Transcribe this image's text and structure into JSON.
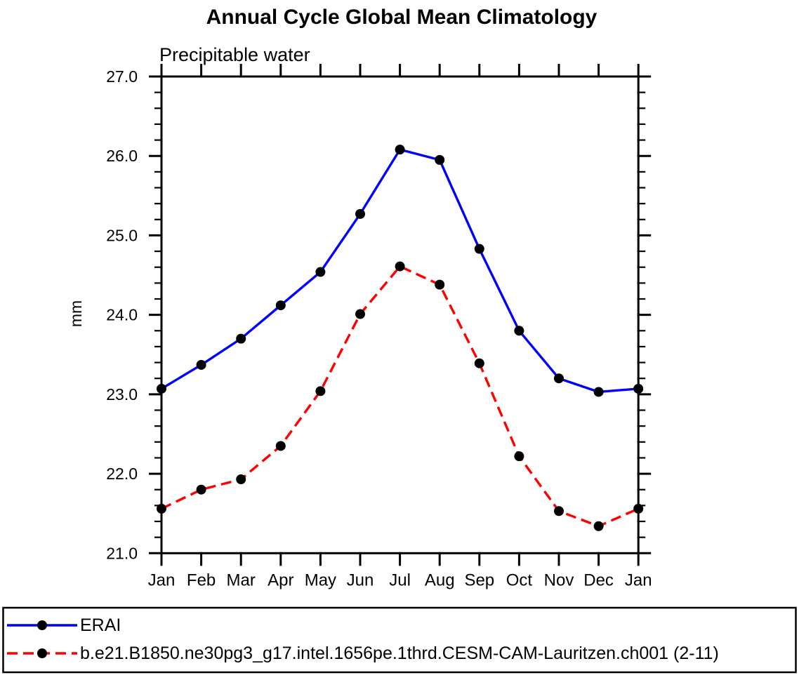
{
  "chart_data": {
    "type": "line",
    "title": "Annual Cycle Global Mean Climatology",
    "subtitle": "Precipitable water",
    "ylabel": "mm",
    "ylim": [
      21.0,
      27.0
    ],
    "ytick_major": 1.0,
    "ytick_minor": 0.2,
    "y_tick_labels": [
      "21.0",
      "22.0",
      "23.0",
      "24.0",
      "25.0",
      "26.0",
      "27.0"
    ],
    "x_categories": [
      "Jan",
      "Feb",
      "Mar",
      "Apr",
      "May",
      "Jun",
      "Jul",
      "Aug",
      "Sep",
      "Oct",
      "Nov",
      "Dec",
      "Jan"
    ],
    "grid": false,
    "legend_position": "bottom",
    "axis_color": "#000000",
    "background_color": "#ffffff",
    "marker": "filled-circle",
    "series": [
      {
        "name": "ERAI",
        "color": "#0000ff",
        "line_style": "solid",
        "marker_color": "#000000",
        "values": [
          23.07,
          23.37,
          23.7,
          24.12,
          24.54,
          25.27,
          26.08,
          25.95,
          24.83,
          23.8,
          23.2,
          23.03,
          23.07
        ]
      },
      {
        "name": "b.e21.B1850.ne30pg3_g17.intel.1656pe.1thrd.CESM-CAM-Lauritzen.ch001 (2-11)",
        "color": "#ff0000",
        "line_style": "dashed",
        "marker_color": "#000000",
        "values": [
          21.56,
          21.8,
          21.93,
          22.35,
          23.04,
          24.01,
          24.61,
          24.38,
          23.39,
          22.22,
          21.53,
          21.34,
          21.56
        ]
      }
    ]
  }
}
